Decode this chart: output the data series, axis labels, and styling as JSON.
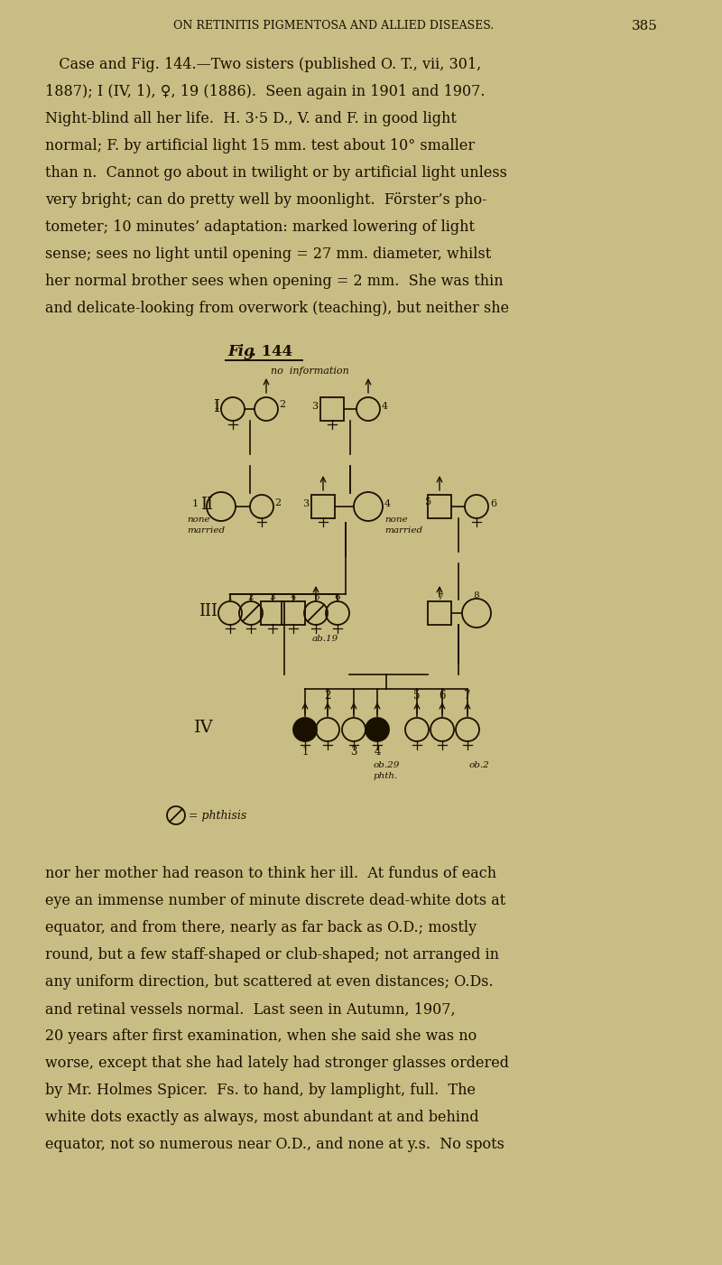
{
  "bg_color": "#c8bd84",
  "text_color": "#1a1000",
  "page_header": "ON RETINITIS PIGMENTOSA AND ALLIED DISEASES.",
  "page_number": "385",
  "p1_lines": [
    "   Case and Fig. 144.—Two sisters (published O. T., vii, 301,",
    "1887); I (IV, 1), ♀, 19 (1886).  Seen again in 1901 and 1907.",
    "Night-blind all her life.  H. 3·5 D., V. and F. in good light",
    "normal; F. by artificial light 15 mm. test about 10° smaller",
    "than n.  Cannot go about in twilight or by artificial light unless",
    "very bright; can do pretty well by moonlight.  Förster’s pho-",
    "tometer; 10 minutes’ adaptation: marked lowering of light",
    "sense; sees no light until opening = 27 mm. diameter, whilst",
    "her normal brother sees when opening = 2 mm.  She was thin",
    "and delicate-looking from overwork (teaching), but neither she"
  ],
  "p2_lines": [
    "nor her mother had reason to think her ill.  At fundus of each",
    "eye an immense number of minute discrete dead-white dots at",
    "equator, and from there, nearly as far back as O.D.; mostly",
    "round, but a few staff-shaped or club-shaped; not arranged in",
    "any uniform direction, but scattered at even distances; O.Ds.",
    "and retinal vessels normal.  Last seen in Autumn, 1907,",
    "20 years after first examination, when she said she was no",
    "worse, except that she had lately had stronger glasses ordered",
    "by Mr. Holmes Spicer.  Fs. to hand, by lamplight, full.  The",
    "white dots exactly as always, most abundant at and behind",
    "equator, not so numerous near O.D., and none at y.s.  No spots"
  ]
}
